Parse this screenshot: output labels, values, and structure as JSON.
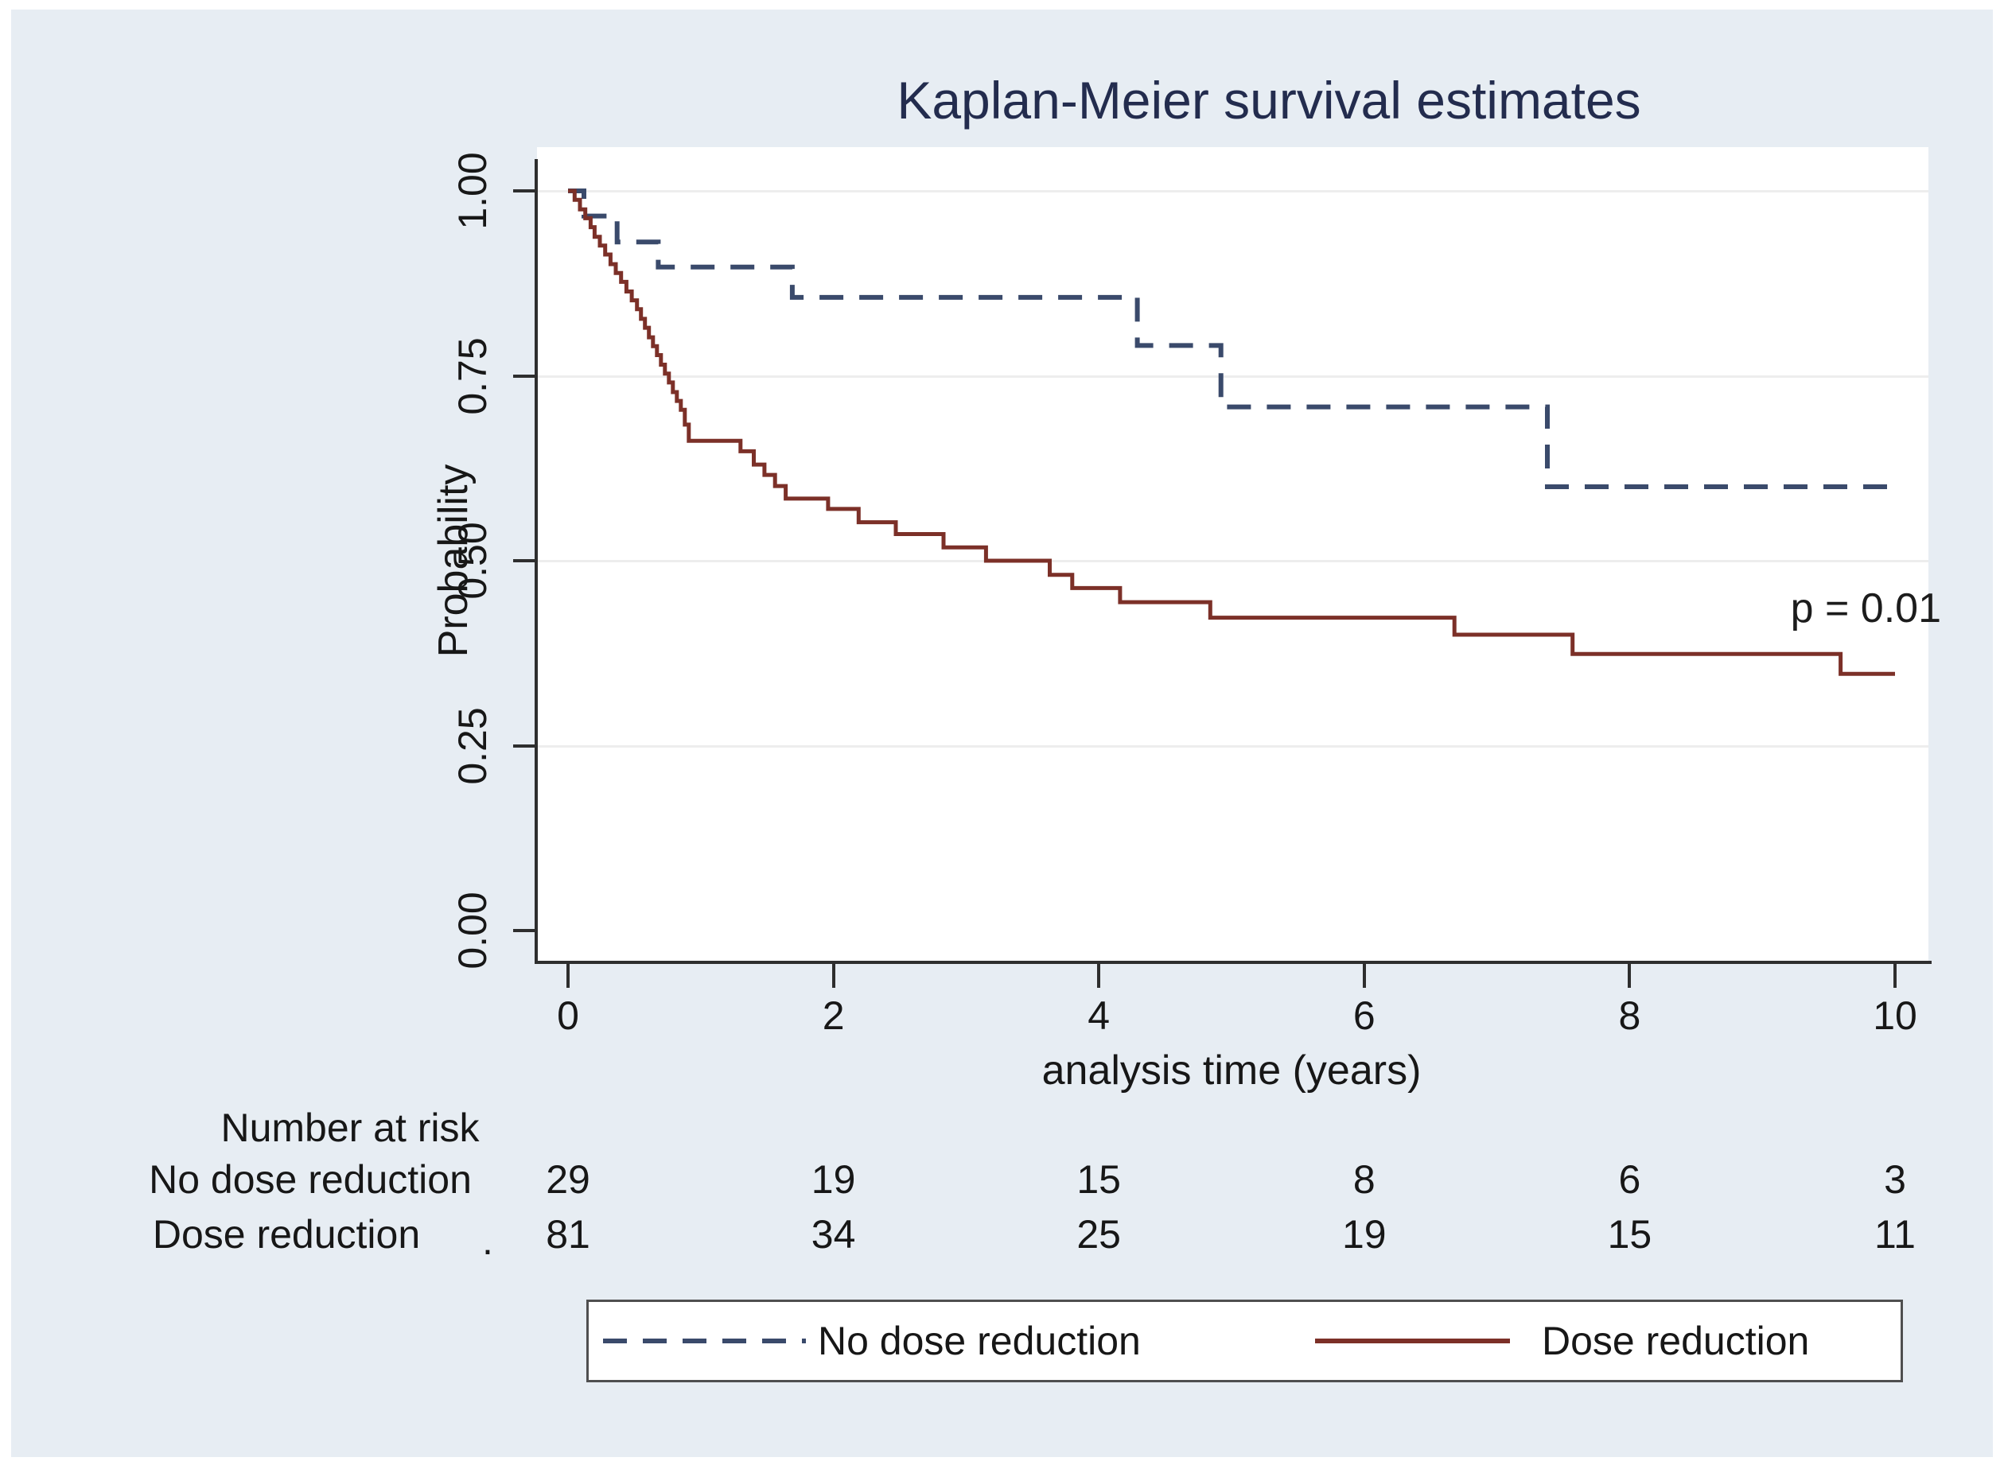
{
  "figure": {
    "title": "Kaplan-Meier survival estimates",
    "p_value_label": "p = 0.01",
    "x_axis": {
      "label": "analysis time (years)",
      "ticks": [
        "0",
        "2",
        "4",
        "6",
        "8",
        "10"
      ]
    },
    "y_axis": {
      "label": "Probability",
      "ticks": [
        "1.00",
        "0.75",
        "0.50",
        "0.25",
        "0.00"
      ]
    }
  },
  "risk_table": {
    "header": "Number at risk",
    "rows": [
      {
        "label": "No dose reduction",
        "suffix": "",
        "values": [
          "29",
          "19",
          "15",
          "8",
          "6",
          "3"
        ]
      },
      {
        "label": "Dose reduction",
        "suffix": ".",
        "values": [
          "81",
          "34",
          "25",
          "19",
          "15",
          "11"
        ]
      }
    ]
  },
  "legend": {
    "items": [
      {
        "label": "No dose reduction",
        "style": "dashed",
        "color": "#3a4a6b"
      },
      {
        "label": "Dose reduction",
        "style": "solid",
        "color": "#7c3028"
      }
    ]
  },
  "colors": {
    "background": "#e7edf3",
    "plot_background": "#ffffff",
    "gridline": "#ededed",
    "axis": "#2e2e2e",
    "title": "#232c4e",
    "no_dose_reduction_curve": "#3a4a6b",
    "dose_reduction_curve": "#7c3028"
  },
  "chart_data": {
    "type": "line",
    "subtype": "kaplan-meier-step",
    "title": "Kaplan-Meier survival estimates",
    "xlabel": "analysis time (years)",
    "ylabel": "Probability",
    "xlim": [
      0,
      10
    ],
    "ylim": [
      0.0,
      1.0
    ],
    "x_ticks": [
      0,
      2,
      4,
      6,
      8,
      10
    ],
    "y_ticks": [
      1.0,
      0.75,
      0.5,
      0.25,
      0.0
    ],
    "grid": true,
    "legend_position": "bottom",
    "annotations": [
      {
        "text": "p = 0.01",
        "x": 9.8,
        "y": 0.435
      }
    ],
    "series": [
      {
        "name": "No dose reduction",
        "style": "dashed",
        "color": "#3a4a6b",
        "start": [
          0,
          1.0
        ],
        "end_time": 10,
        "steps": [
          [
            0.12,
            0.966
          ],
          [
            0.37,
            0.931
          ],
          [
            0.68,
            0.897
          ],
          [
            1.69,
            0.856
          ],
          [
            4.29,
            0.791
          ],
          [
            4.92,
            0.708
          ],
          [
            7.38,
            0.6
          ]
        ]
      },
      {
        "name": "Dose reduction",
        "style": "solid",
        "color": "#7c3028",
        "start": [
          0,
          1.0
        ],
        "end_time": 10,
        "steps": [
          [
            0.05,
            0.988
          ],
          [
            0.09,
            0.975
          ],
          [
            0.13,
            0.963
          ],
          [
            0.17,
            0.951
          ],
          [
            0.2,
            0.938
          ],
          [
            0.24,
            0.926
          ],
          [
            0.28,
            0.914
          ],
          [
            0.32,
            0.901
          ],
          [
            0.36,
            0.889
          ],
          [
            0.4,
            0.877
          ],
          [
            0.44,
            0.864
          ],
          [
            0.48,
            0.852
          ],
          [
            0.52,
            0.84
          ],
          [
            0.55,
            0.827
          ],
          [
            0.58,
            0.815
          ],
          [
            0.61,
            0.802
          ],
          [
            0.64,
            0.79
          ],
          [
            0.67,
            0.778
          ],
          [
            0.7,
            0.765
          ],
          [
            0.73,
            0.753
          ],
          [
            0.76,
            0.741
          ],
          [
            0.79,
            0.728
          ],
          [
            0.82,
            0.716
          ],
          [
            0.85,
            0.704
          ],
          [
            0.88,
            0.684
          ],
          [
            0.91,
            0.662
          ],
          [
            1.3,
            0.648
          ],
          [
            1.4,
            0.63
          ],
          [
            1.48,
            0.616
          ],
          [
            1.56,
            0.601
          ],
          [
            1.64,
            0.584
          ],
          [
            1.96,
            0.57
          ],
          [
            2.19,
            0.552
          ],
          [
            2.47,
            0.536
          ],
          [
            2.83,
            0.518
          ],
          [
            3.15,
            0.5
          ],
          [
            3.63,
            0.481
          ],
          [
            3.8,
            0.463
          ],
          [
            4.16,
            0.444
          ],
          [
            4.84,
            0.423
          ],
          [
            6.68,
            0.4
          ],
          [
            7.57,
            0.374
          ],
          [
            9.59,
            0.347
          ]
        ]
      }
    ],
    "number_at_risk": {
      "header": "Number at risk",
      "times": [
        0,
        2,
        4,
        6,
        8,
        10
      ],
      "groups": [
        {
          "name": "No dose reduction",
          "counts": [
            29,
            19,
            15,
            8,
            6,
            3
          ]
        },
        {
          "name": "Dose reduction",
          "counts": [
            81,
            34,
            25,
            19,
            15,
            11
          ]
        }
      ]
    }
  }
}
